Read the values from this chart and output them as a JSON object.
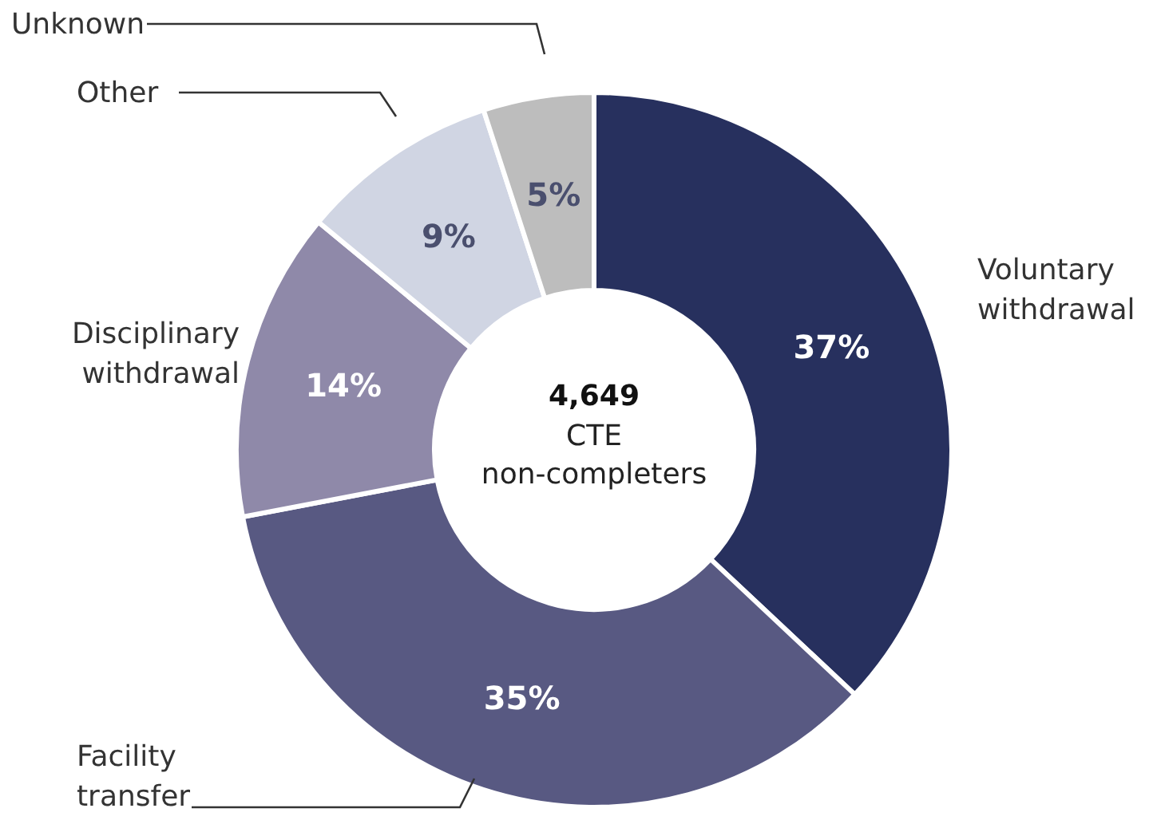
{
  "chart_data": {
    "type": "donut",
    "title": "4,649",
    "subtitle": "CTE non-completers",
    "categories": [
      "Voluntary withdrawal",
      "Facility transfer",
      "Disciplinary withdrawal",
      "Other",
      "Unknown"
    ],
    "values": [
      37,
      35,
      14,
      9,
      5
    ],
    "value_labels": [
      "37%",
      "35%",
      "14%",
      "9%",
      "5%"
    ],
    "colors": [
      "#27305e",
      "#585982",
      "#8f89a9",
      "#d0d5e3",
      "#bdbdbd"
    ]
  }
}
